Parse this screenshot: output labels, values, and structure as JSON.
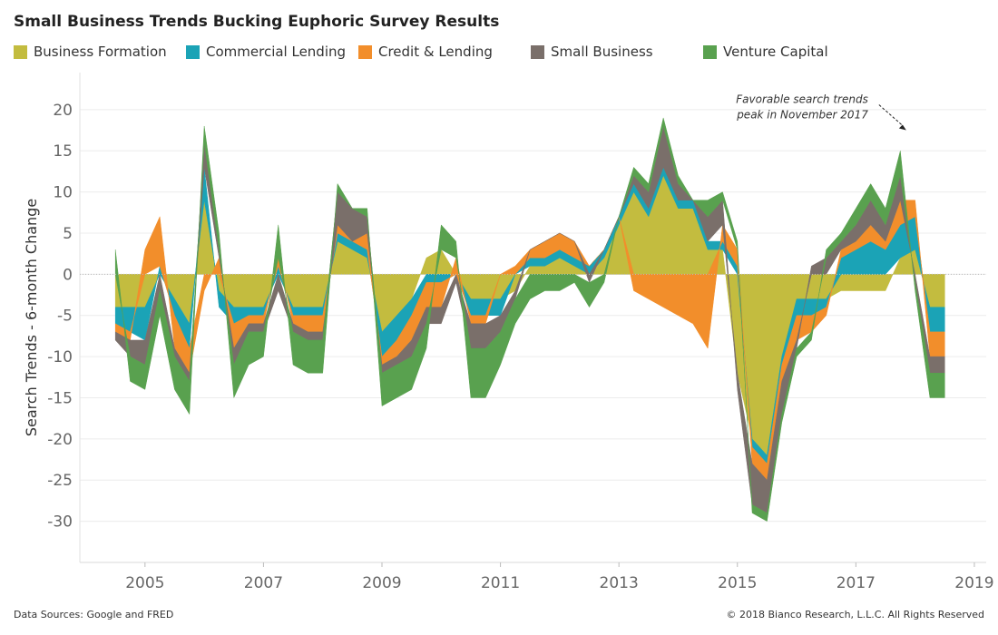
{
  "title": "Small Business Trends Bucking Euphoric Survey Results",
  "footer": {
    "sources": "Data Sources: Google and FRED",
    "copyright": "© 2018 Bianco Research, L.L.C. All Rights Reserved"
  },
  "chart_data": {
    "type": "area",
    "title": "Small Business Trends Bucking Euphoric Survey Results",
    "xlabel": "",
    "ylabel": "Search Trends - 6-month Change",
    "xlim": [
      2003.9,
      2019.2
    ],
    "ylim": [
      -35,
      24.5
    ],
    "x_ticks": [
      2005,
      2007,
      2009,
      2011,
      2013,
      2015,
      2017,
      2019
    ],
    "y_ticks": [
      20,
      15,
      10,
      5,
      0,
      -5,
      -10,
      -15,
      -20,
      -25,
      -30
    ],
    "grid": "horizontal",
    "legend": "top",
    "stacked": "diverging",
    "x": [
      2004.5,
      2004.75,
      2005,
      2005.25,
      2005.5,
      2005.75,
      2006,
      2006.25,
      2006.5,
      2006.75,
      2007,
      2007.25,
      2007.5,
      2007.75,
      2008,
      2008.25,
      2008.5,
      2008.75,
      2009,
      2009.25,
      2009.5,
      2009.75,
      2010,
      2010.25,
      2010.5,
      2010.75,
      2011,
      2011.25,
      2011.5,
      2011.75,
      2012,
      2012.25,
      2012.5,
      2012.75,
      2013,
      2013.25,
      2013.5,
      2013.75,
      2014,
      2014.25,
      2014.5,
      2014.75,
      2015,
      2015.25,
      2015.5,
      2015.75,
      2016,
      2016.25,
      2016.5,
      2016.75,
      2017,
      2017.25,
      2017.5,
      2017.75,
      2018,
      2018.25,
      2018.5
    ],
    "series": [
      {
        "name": "Business Formation",
        "color": "#c3bc3f",
        "values": [
          -4,
          -4,
          -4,
          0,
          -3,
          -6,
          9,
          -2,
          -4,
          -4,
          -4,
          0,
          -4,
          -4,
          -4,
          4,
          3,
          2,
          -7,
          -5,
          -3,
          2,
          3,
          0,
          -3,
          -3,
          -3,
          -2,
          1,
          1,
          2,
          1,
          0,
          2,
          6,
          10,
          7,
          12,
          8,
          8,
          3,
          3,
          -12,
          -20,
          -22,
          -10,
          -3,
          -3,
          -3,
          -2,
          -2,
          -2,
          -2,
          2,
          3,
          -4,
          -4
        ]
      },
      {
        "name": "Commercial Lending",
        "color": "#1ba3b6",
        "values": [
          -2,
          -3,
          -4,
          1,
          -2,
          -3,
          4,
          -2,
          -2,
          -1,
          -1,
          1,
          -1,
          -1,
          -1,
          1,
          1,
          1,
          -3,
          -3,
          -2,
          -1,
          -1,
          0,
          -2,
          -2,
          -2,
          0,
          1,
          1,
          1,
          1,
          1,
          1,
          1,
          1,
          1,
          1,
          1,
          1,
          1,
          1,
          1,
          -1,
          -1,
          -1,
          -2,
          -2,
          -1,
          2,
          3,
          4,
          3,
          4,
          4,
          -3,
          -3
        ]
      },
      {
        "name": "Credit & Lending",
        "color": "#f28e2b",
        "values": [
          -1,
          -1,
          3,
          6,
          -4,
          -3,
          -2,
          2,
          -3,
          -1,
          -1,
          1,
          -1,
          -2,
          -2,
          1,
          0,
          2,
          -1,
          -2,
          -3,
          -3,
          -3,
          2,
          -1,
          -1,
          0,
          1,
          1,
          2,
          2,
          2,
          0,
          0,
          0,
          -2,
          -3,
          -4,
          -5,
          -6,
          -9,
          2,
          2,
          -2,
          -2,
          -2,
          -3,
          -2,
          -1,
          1,
          1,
          2,
          1,
          3,
          2,
          -3,
          -3
        ]
      },
      {
        "name": "Small Business",
        "color": "#7a6f6a",
        "values": [
          -1,
          -2,
          -3,
          -2,
          -1,
          -1,
          3,
          1,
          -2,
          -1,
          -1,
          -2,
          -1,
          -1,
          -1,
          4,
          4,
          2,
          -1,
          -1,
          -2,
          -2,
          -2,
          -1,
          -3,
          -3,
          -2,
          -1,
          0,
          0,
          0,
          0,
          -1,
          0,
          0,
          1,
          2,
          5,
          2,
          0,
          3,
          3,
          -2,
          -5,
          -4,
          -4,
          -1,
          1,
          2,
          1,
          2,
          3,
          2,
          3,
          -1,
          -2,
          -2
        ]
      },
      {
        "name": "Venture Capital",
        "color": "#59a14f",
        "values": [
          3,
          -3,
          -3,
          -3,
          -4,
          -4,
          2,
          2,
          -4,
          -4,
          -3,
          4,
          -4,
          -4,
          -4,
          1,
          0,
          1,
          -4,
          -4,
          -4,
          -3,
          3,
          2,
          -6,
          -6,
          -4,
          -3,
          -3,
          -2,
          -2,
          -1,
          -3,
          -1,
          0,
          1,
          1,
          1,
          1,
          0,
          2,
          1,
          1,
          -1,
          -1,
          -1,
          -1,
          -1,
          1,
          1,
          2,
          2,
          2,
          3,
          -1,
          -3,
          -3
        ]
      }
    ],
    "annotations": [
      {
        "text": [
          "Favorable search trends",
          "peak in November 2017"
        ],
        "x": 2017.85,
        "y": 17.5
      }
    ]
  }
}
